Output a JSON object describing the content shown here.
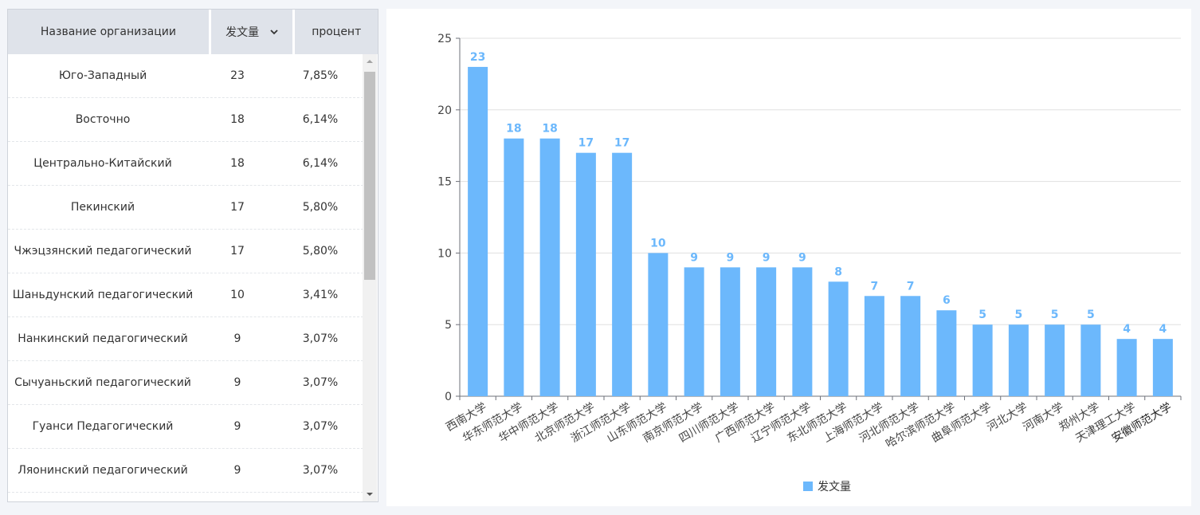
{
  "table": {
    "headers": [
      "Название организации",
      "发文量",
      "процент"
    ],
    "rows": [
      [
        "Юго-Западный",
        "23",
        "7,85%"
      ],
      [
        "Восточно",
        "18",
        "6,14%"
      ],
      [
        "Центрально-Китайский",
        "18",
        "6,14%"
      ],
      [
        "Пекинский",
        "17",
        "5,80%"
      ],
      [
        "Чжэцзянский педагогический",
        "17",
        "5,80%"
      ],
      [
        "Шаньдунский педагогический",
        "10",
        "3,41%"
      ],
      [
        "Нанкинский педагогический",
        "9",
        "3,07%"
      ],
      [
        "Сычуаньский педагогический",
        "9",
        "3,07%"
      ],
      [
        "Гуанси Педагогический",
        "9",
        "3,07%"
      ],
      [
        "Ляонинский педагогический",
        "9",
        "3,07%"
      ]
    ]
  },
  "chart_data": {
    "type": "bar",
    "categories": [
      "西南大学",
      "华东师范大学",
      "华中师范大学",
      "北京师范大学",
      "浙江师范大学",
      "山东师范大学",
      "南京师范大学",
      "四川师范大学",
      "广西师范大学",
      "辽宁师范大学",
      "东北师范大学",
      "上海师范大学",
      "河北师范大学",
      "哈尔滨师范大学",
      "曲阜师范大学",
      "河北大学",
      "河南大学",
      "郑州大学",
      "天津理工大学",
      "安徽师范大学"
    ],
    "series": [
      {
        "name": "发文量",
        "values": [
          23,
          18,
          18,
          17,
          17,
          10,
          9,
          9,
          9,
          9,
          8,
          7,
          7,
          6,
          5,
          5,
          5,
          5,
          4,
          4
        ]
      }
    ],
    "ylim": [
      0,
      25
    ],
    "yticks": [
      0,
      5,
      10,
      15,
      20,
      25
    ],
    "grid": true,
    "legend_position": "bottom",
    "bar_color": "#6cb8fc",
    "label_color": "#6cb8fc",
    "highlighted_category_color": "#222222"
  }
}
